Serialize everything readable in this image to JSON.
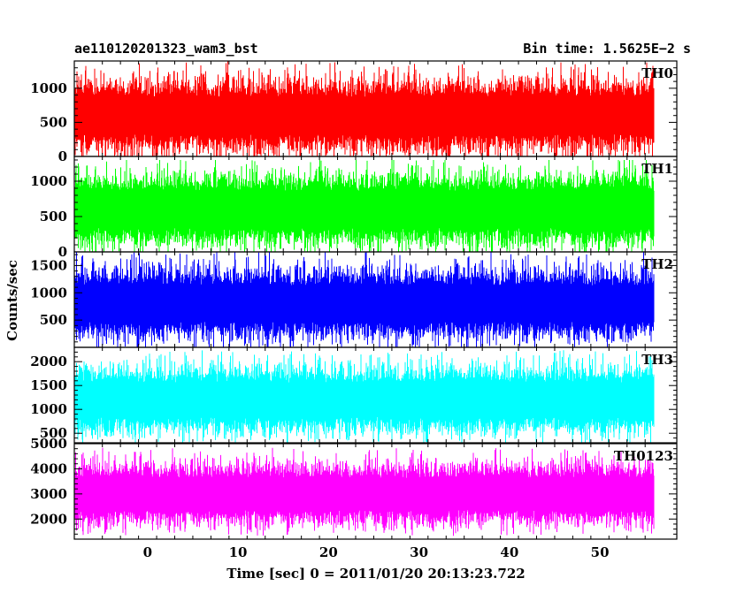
{
  "chart_data": {
    "type": "line",
    "title": "ae110120201323_wam3_bst",
    "subtitle": "Bin time: 1.5625E−2 s",
    "xlabel": "Time [sec] 0 = 2011/01/20 20:13:23.722",
    "ylabel": "Counts/sec",
    "xlim": [
      -8.1,
      58.5
    ],
    "x_range_of_data": [
      -8.0,
      56.0
    ],
    "x_ticks": [
      0,
      10,
      20,
      30,
      40,
      50
    ],
    "x_tick_labels": [
      "0",
      "10",
      "20",
      "30",
      "40",
      "50"
    ],
    "grid": false,
    "legend": "none",
    "panels": [
      {
        "series_name": "TH0",
        "color": "#ff0000",
        "ylim": [
          0,
          1400
        ],
        "y_ticks": [
          0,
          500,
          1000
        ],
        "y_tick_labels": [
          "0",
          "500",
          "1000"
        ],
        "typical_min": 100,
        "typical_max": 1100,
        "mean": 600,
        "peak": 1400
      },
      {
        "series_name": "TH1",
        "color": "#00ff00",
        "ylim": [
          0,
          1350
        ],
        "y_ticks": [
          0,
          500,
          1000
        ],
        "y_tick_labels": [
          "0",
          "500",
          "1000"
        ],
        "typical_min": 150,
        "typical_max": 1100,
        "mean": 600,
        "peak": 1300
      },
      {
        "series_name": "TH2",
        "color": "#0000ff",
        "ylim": [
          0,
          1750
        ],
        "y_ticks": [
          500,
          1000,
          1500
        ],
        "y_tick_labels": [
          "500",
          "1000",
          "1500"
        ],
        "typical_min": 200,
        "typical_max": 1400,
        "mean": 800,
        "peak": 1750
      },
      {
        "series_name": "TH3",
        "color": "#00ffff",
        "ylim": [
          300,
          2300
        ],
        "y_ticks": [
          500,
          1000,
          1500,
          2000
        ],
        "y_tick_labels": [
          "500",
          "1000",
          "1500",
          "2000"
        ],
        "typical_min": 600,
        "typical_max": 1900,
        "mean": 1200,
        "peak": 2300
      },
      {
        "series_name": "TH0123",
        "color": "#ff00ff",
        "ylim": [
          1200,
          5000
        ],
        "y_ticks": [
          2000,
          3000,
          4000,
          5000
        ],
        "y_tick_labels": [
          "2000",
          "3000",
          "4000",
          "5000"
        ],
        "typical_min": 1800,
        "typical_max": 4100,
        "mean": 3000,
        "peak": 4900
      }
    ]
  }
}
